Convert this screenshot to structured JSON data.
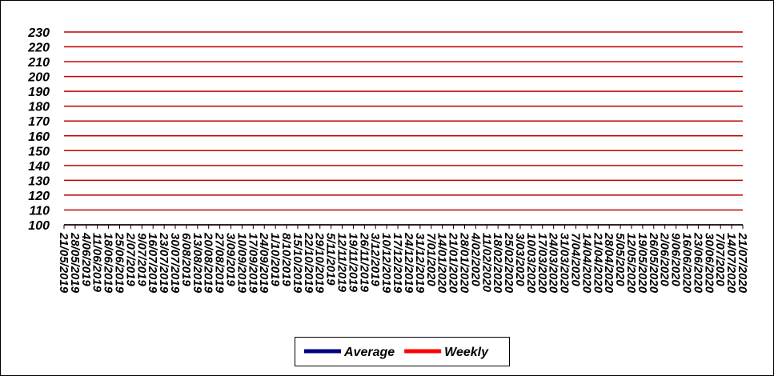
{
  "chart_data": {
    "type": "line",
    "categories": [
      "21/05/2019",
      "28/05/2019",
      "4/06/2019",
      "11/06/2019",
      "18/06/2019",
      "25/06/2019",
      "2/07/2019",
      "9/07/2019",
      "16/07/2019",
      "23/07/2019",
      "30/07/2019",
      "6/08/2019",
      "13/08/2019",
      "20/08/2019",
      "27/08/2019",
      "3/09/2019",
      "10/09/2019",
      "17/09/2019",
      "24/09/2019",
      "1/10/2019",
      "8/10/2019",
      "15/10/2019",
      "22/10/2019",
      "29/10/2019",
      "5/11/2019",
      "12/11/2019",
      "19/11/2019",
      "26/11/2019",
      "3/12/2019",
      "10/12/2019",
      "17/12/2019",
      "24/12/2019",
      "31/12/2019",
      "7/01/2020",
      "14/01/2020",
      "21/01/2020",
      "28/01/2020",
      "4/02/2020",
      "11/02/2020",
      "18/02/2020",
      "25/02/2020",
      "3/03/2020",
      "10/03/2020",
      "17/03/2020",
      "24/03/2020",
      "31/03/2020",
      "7/04/2020",
      "14/04/2020",
      "21/04/2020",
      "28/04/2020",
      "5/05/2020",
      "12/05/2020",
      "19/05/2020",
      "26/05/2020",
      "2/06/2020",
      "9/06/2020",
      "16/06/2020",
      "23/06/2020",
      "30/06/2020",
      "7/07/2020",
      "14/07/2020",
      "21/07/2020"
    ],
    "series": [
      {
        "name": "Average",
        "color": "#000080",
        "values": [
          null,
          null,
          null,
          null,
          null,
          null,
          null,
          null,
          null,
          null,
          null,
          null,
          null,
          null,
          null,
          null,
          null,
          null,
          null,
          null,
          null,
          null,
          null,
          null,
          null,
          null,
          null,
          null,
          null,
          null,
          null,
          null,
          null,
          null,
          null,
          null,
          null,
          null,
          null,
          null,
          null,
          null,
          null,
          null,
          null,
          null,
          null,
          null,
          null,
          null,
          null,
          null,
          null,
          null,
          null,
          null,
          null,
          null,
          null,
          null,
          null,
          null
        ]
      },
      {
        "name": "Weekly",
        "color": "#ff0000",
        "values": [
          null,
          null,
          null,
          null,
          null,
          null,
          null,
          null,
          null,
          null,
          null,
          null,
          null,
          null,
          null,
          null,
          null,
          null,
          null,
          null,
          null,
          null,
          null,
          null,
          null,
          null,
          null,
          null,
          null,
          null,
          null,
          null,
          null,
          null,
          null,
          null,
          null,
          null,
          null,
          null,
          null,
          null,
          null,
          null,
          null,
          null,
          null,
          null,
          null,
          null,
          null,
          null,
          null,
          null,
          null,
          null,
          null,
          null,
          null,
          null,
          null,
          null
        ]
      }
    ],
    "ylim": [
      100,
      230
    ],
    "yticks": [
      100,
      110,
      120,
      130,
      140,
      150,
      160,
      170,
      180,
      190,
      200,
      210,
      220,
      230
    ],
    "grid": true,
    "grid_color": "#c00000",
    "legend": "bottom"
  }
}
